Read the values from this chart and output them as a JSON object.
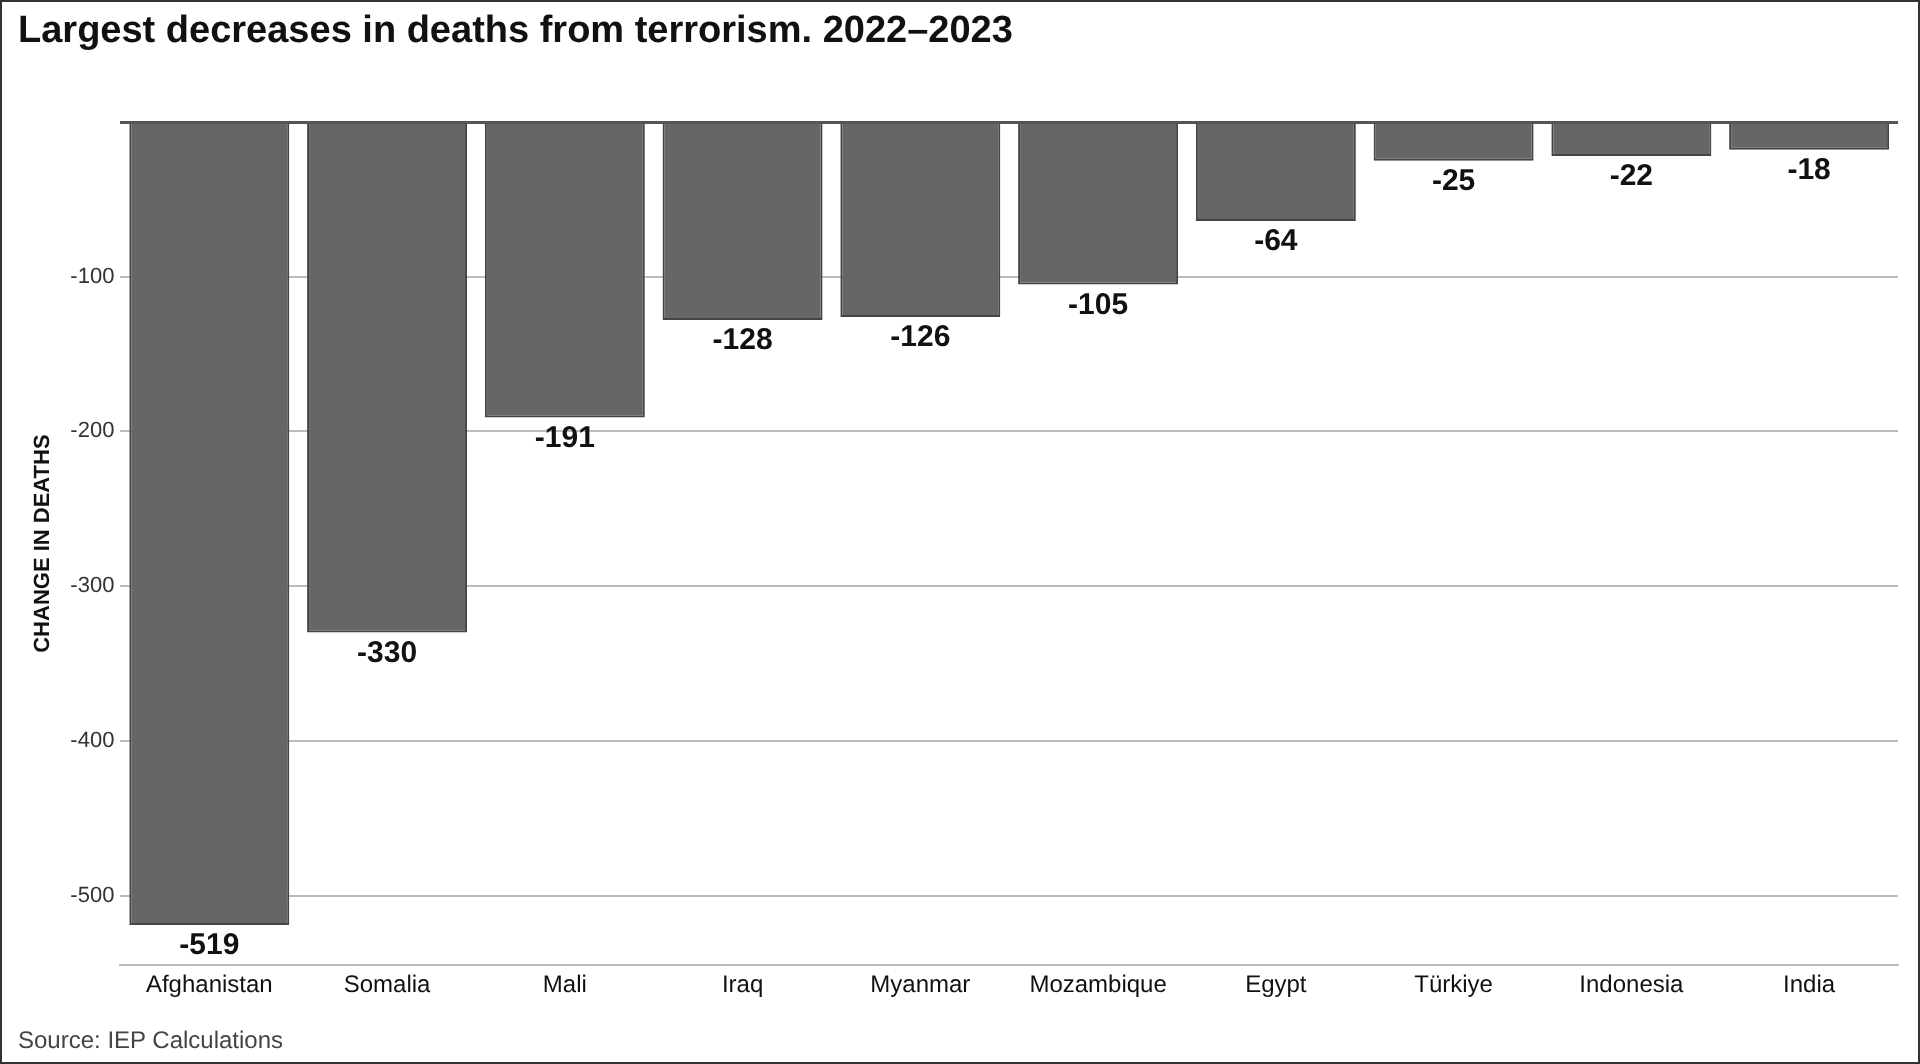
{
  "chart_data": {
    "type": "bar",
    "title": "Largest decreases in deaths from terrorism. 2022–2023",
    "ylabel": "CHANGE IN DEATHS",
    "categories": [
      "Afghanistan",
      "Somalia",
      "Mali",
      "Iraq",
      "Myanmar",
      "Mozambique",
      "Egypt",
      "Türkiye",
      "Indonesia",
      "India"
    ],
    "values": [
      -519,
      -330,
      -191,
      -128,
      -126,
      -105,
      -64,
      -25,
      -22,
      -18
    ],
    "color": "#666666",
    "ylim": [
      -545,
      0
    ],
    "yticks": [
      {
        "value": 0,
        "label": null
      },
      -100,
      -200,
      -300,
      -400,
      -500
    ],
    "grid": "y",
    "data_labels": true,
    "legend": false,
    "annotations": [
      "Source: IEP Calculations"
    ]
  }
}
